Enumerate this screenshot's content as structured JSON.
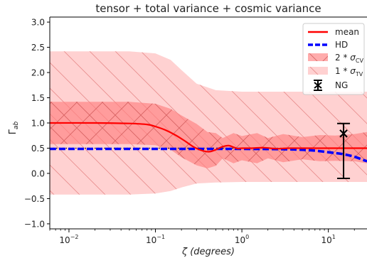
{
  "chart_data": {
    "type": "line",
    "title": "tensor + total variance + cosmic variance",
    "xlabel": "ζ (degrees)",
    "ylabel": "Γ",
    "ylabel_sub": "ab",
    "xscale": "log",
    "xlim": [
      0.006,
      28
    ],
    "ylim": [
      -1.1,
      3.1
    ],
    "xticks": [
      {
        "value": 0.01,
        "base": "10",
        "exp": "−2"
      },
      {
        "value": 0.1,
        "base": "10",
        "exp": "−1"
      },
      {
        "value": 1,
        "base": "10",
        "exp": "0"
      },
      {
        "value": 10,
        "base": "10",
        "exp": "1"
      }
    ],
    "yticks": [
      {
        "value": -1.0,
        "label": "−1.0"
      },
      {
        "value": -0.5,
        "label": "−0.5"
      },
      {
        "value": 0.0,
        "label": "0.0"
      },
      {
        "value": 0.5,
        "label": "0.5"
      },
      {
        "value": 1.0,
        "label": "1.0"
      },
      {
        "value": 1.5,
        "label": "1.5"
      },
      {
        "value": 2.0,
        "label": "2.0"
      },
      {
        "value": 2.5,
        "label": "2.5"
      },
      {
        "value": 3.0,
        "label": "3.0"
      }
    ],
    "reference_line": {
      "y": 0.5,
      "style": "dotted",
      "color": "#000000"
    },
    "series": [
      {
        "name": "mean",
        "color": "#ff0000",
        "style": "solid",
        "x": [
          0.006,
          0.02,
          0.05,
          0.08,
          0.1,
          0.13,
          0.17,
          0.22,
          0.28,
          0.35,
          0.42,
          0.5,
          0.6,
          0.7,
          0.8,
          0.9,
          1.0,
          1.3,
          1.8,
          2.5,
          3.5,
          5,
          8,
          28
        ],
        "y": [
          1.0,
          1.0,
          0.99,
          0.97,
          0.93,
          0.86,
          0.76,
          0.64,
          0.52,
          0.45,
          0.43,
          0.47,
          0.53,
          0.55,
          0.52,
          0.49,
          0.5,
          0.5,
          0.51,
          0.49,
          0.5,
          0.5,
          0.5,
          0.5
        ]
      },
      {
        "name": "HD",
        "color": "#0000ff",
        "style": "dashed",
        "x": [
          0.006,
          0.1,
          1,
          3,
          6,
          10,
          15,
          20,
          25,
          28
        ],
        "y": [
          0.485,
          0.485,
          0.485,
          0.48,
          0.46,
          0.42,
          0.38,
          0.33,
          0.27,
          0.24
        ]
      }
    ],
    "bands": [
      {
        "name": "1 * σTV",
        "legend_base": "1 * ",
        "legend_sym": "σ",
        "legend_sub": "TV",
        "color": "#ffb3b3",
        "opacity": 0.6,
        "hatch": "\\",
        "x": [
          0.006,
          0.05,
          0.1,
          0.15,
          0.2,
          0.3,
          0.5,
          1,
          2,
          5,
          10,
          28
        ],
        "upper": [
          2.42,
          2.42,
          2.38,
          2.25,
          2.05,
          1.78,
          1.65,
          1.62,
          1.62,
          1.62,
          1.62,
          1.62
        ],
        "lower": [
          -0.42,
          -0.42,
          -0.4,
          -0.35,
          -0.28,
          -0.2,
          -0.18,
          -0.17,
          -0.17,
          -0.17,
          -0.17,
          -0.17
        ]
      },
      {
        "name": "2 * σCV",
        "legend_base": "2 * ",
        "legend_sym": "σ",
        "legend_sub": "CV",
        "color": "#ff7f7f",
        "opacity": 0.65,
        "hatch": "x",
        "x": [
          0.006,
          0.05,
          0.1,
          0.15,
          0.2,
          0.3,
          0.4,
          0.5,
          0.6,
          0.8,
          1.0,
          1.5,
          2,
          3,
          5,
          8,
          12,
          20,
          28
        ],
        "upper": [
          1.42,
          1.42,
          1.38,
          1.28,
          1.15,
          0.98,
          0.82,
          0.8,
          0.7,
          0.8,
          0.74,
          0.8,
          0.7,
          0.78,
          0.72,
          0.76,
          0.75,
          0.78,
          0.82
        ],
        "lower": [
          0.58,
          0.58,
          0.56,
          0.47,
          0.32,
          0.16,
          0.1,
          0.15,
          0.3,
          0.2,
          0.26,
          0.2,
          0.3,
          0.22,
          0.28,
          0.24,
          0.25,
          0.24,
          0.2
        ]
      }
    ],
    "errorbar": {
      "name": "NG",
      "x": 15,
      "y": 0.79,
      "lower": -0.1,
      "upper": 0.99,
      "color": "#000000"
    },
    "legend": {
      "position": "top-right",
      "order": [
        "mean",
        "HD",
        "2 * σCV",
        "1 * σTV",
        "NG"
      ]
    },
    "grid": false
  }
}
